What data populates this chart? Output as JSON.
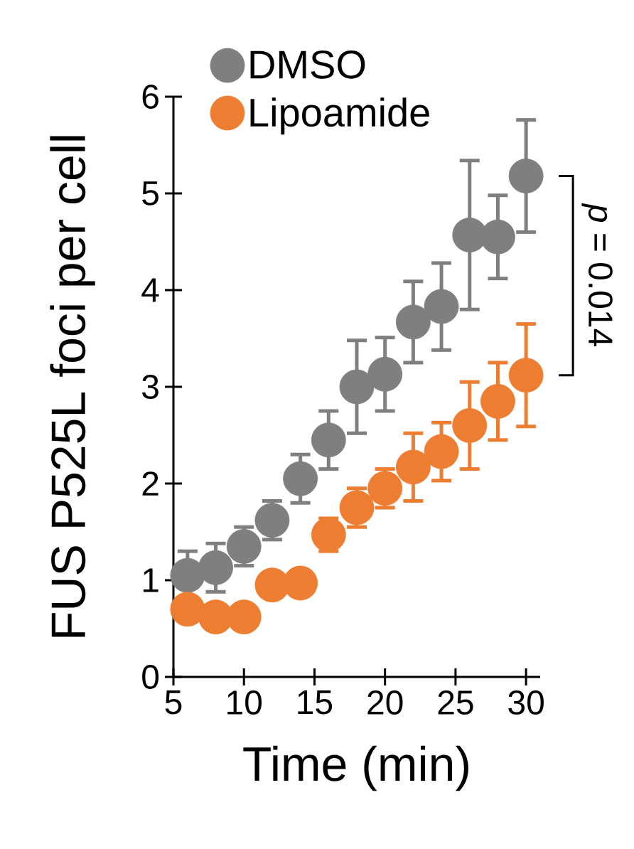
{
  "chart_data": {
    "type": "scatter",
    "xlabel": "Time (min)",
    "ylabel": "FUS P525L foci per cell",
    "x": [
      6,
      8,
      10,
      12,
      14,
      16,
      18,
      20,
      22,
      24,
      26,
      28,
      30
    ],
    "series": [
      {
        "name": "DMSO",
        "color": "#7f7f7f",
        "values": [
          1.05,
          1.13,
          1.35,
          1.62,
          2.05,
          2.45,
          3.0,
          3.13,
          3.67,
          3.83,
          4.57,
          4.55,
          5.18
        ],
        "errors": [
          0.25,
          0.25,
          0.2,
          0.2,
          0.25,
          0.3,
          0.48,
          0.38,
          0.42,
          0.45,
          0.77,
          0.43,
          0.58
        ]
      },
      {
        "name": "Lipoamide",
        "color": "#ed7d31",
        "values": [
          0.7,
          0.62,
          0.62,
          0.95,
          0.97,
          1.47,
          1.75,
          1.95,
          2.17,
          2.33,
          2.6,
          2.85,
          3.12
        ],
        "errors": [
          null,
          null,
          null,
          0.08,
          0.08,
          0.17,
          0.2,
          0.2,
          0.35,
          0.3,
          0.45,
          0.4,
          0.53
        ]
      }
    ],
    "xlim": [
      5,
      31
    ],
    "ylim": [
      0,
      6
    ],
    "xticks": [
      5,
      10,
      15,
      20,
      25,
      30
    ],
    "yticks": [
      0,
      1,
      2,
      3,
      4,
      5,
      6
    ],
    "legend": "top left",
    "annotations": [
      "*p* = 0.014"
    ]
  }
}
